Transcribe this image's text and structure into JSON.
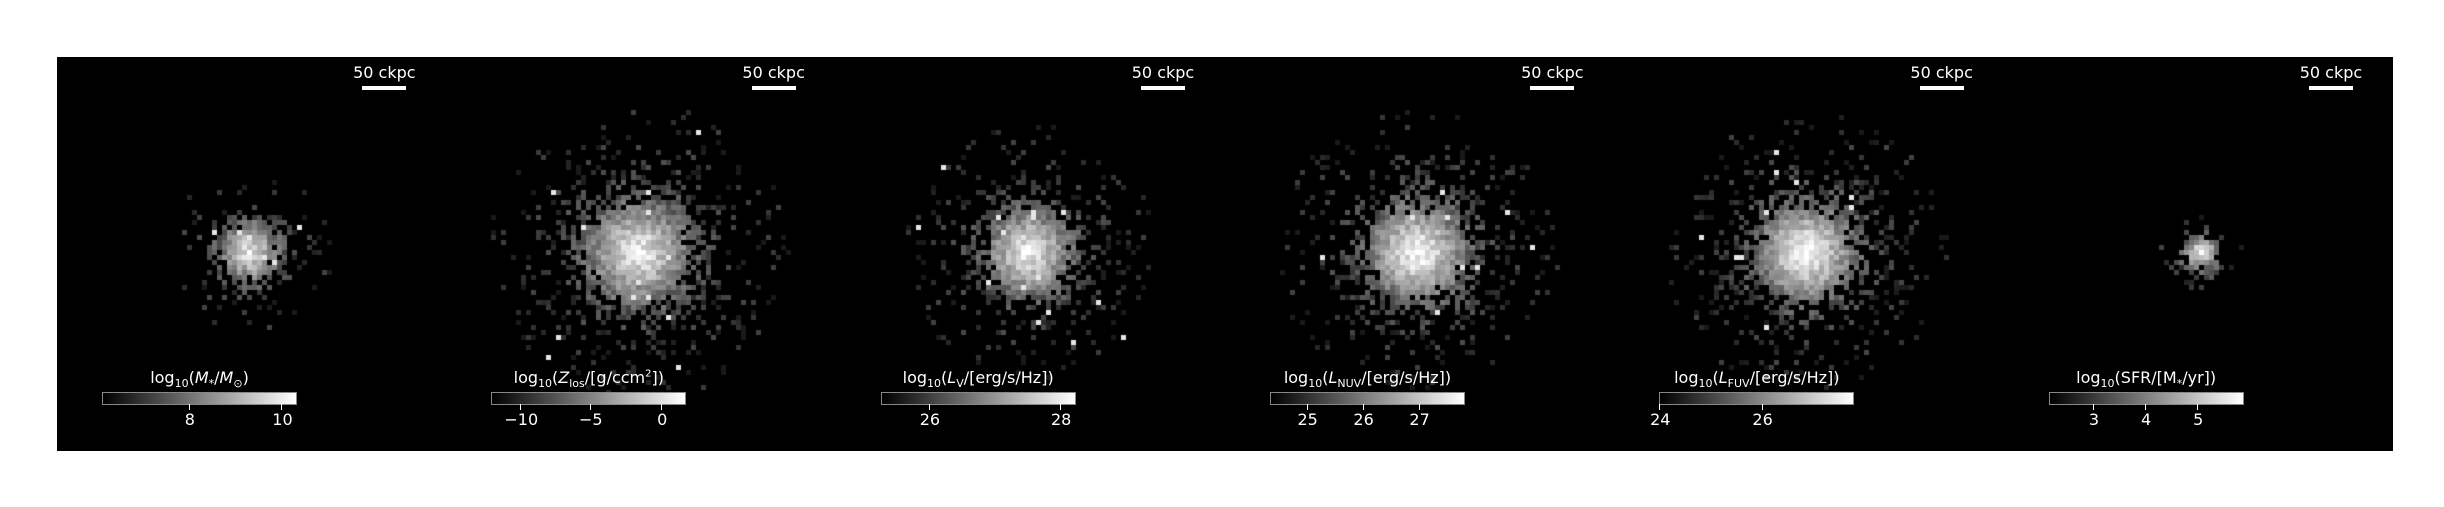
{
  "scale_label": "50 ckpc",
  "panels": [
    {
      "title_html": "log<sub>10</sub>(<i>M</i><sub>*</sub>/<i>M</i><sub>⊙</sub>)",
      "ticks": [
        {
          "label": "8",
          "pos": 0.45
        },
        {
          "label": "10",
          "pos": 0.93
        }
      ],
      "blob": {
        "core": 0.55,
        "spread": 0.55,
        "density": 0.55,
        "bright": 0.5
      }
    },
    {
      "title_html": "log<sub>10</sub>(<i>Z</i><sub>los</sub>/[g/ccm<sup>2</sup>])",
      "ticks": [
        {
          "label": "−10",
          "pos": 0.15
        },
        {
          "label": "−5",
          "pos": 0.51
        },
        {
          "label": "0",
          "pos": 0.88
        }
      ],
      "blob": {
        "core": 0.9,
        "spread": 1.0,
        "density": 0.9,
        "bright": 0.55
      }
    },
    {
      "title_html": "log<sub>10</sub>(<i>L</i><sub>V</sub>/[erg/s/Hz])",
      "ticks": [
        {
          "label": "26",
          "pos": 0.25
        },
        {
          "label": "28",
          "pos": 0.93
        }
      ],
      "blob": {
        "core": 0.75,
        "spread": 0.85,
        "density": 0.8,
        "bright": 0.55
      }
    },
    {
      "title_html": "log<sub>10</sub>(<i>L</i><sub>NUV</sub>/[erg/s/Hz])",
      "ticks": [
        {
          "label": "25",
          "pos": 0.19
        },
        {
          "label": "26",
          "pos": 0.48
        },
        {
          "label": "27",
          "pos": 0.77
        }
      ],
      "blob": {
        "core": 0.85,
        "spread": 0.95,
        "density": 0.85,
        "bright": 0.6
      }
    },
    {
      "title_html": "log<sub>10</sub>(<i>L</i><sub>FUV</sub>/[erg/s/Hz])",
      "ticks": [
        {
          "label": "24",
          "pos": 0.0
        },
        {
          "label": "26",
          "pos": 0.53
        }
      ],
      "blob": {
        "core": 0.85,
        "spread": 0.95,
        "density": 0.85,
        "bright": 0.6
      }
    },
    {
      "title_html": "log<sub>10</sub>(SFR/[M<sub>*</sub>/yr])",
      "ticks": [
        {
          "label": "3",
          "pos": 0.23
        },
        {
          "label": "4",
          "pos": 0.5
        },
        {
          "label": "5",
          "pos": 0.77
        }
      ],
      "blob": {
        "core": 0.35,
        "spread": 0.3,
        "density": 0.3,
        "bright": 0.5
      }
    }
  ]
}
